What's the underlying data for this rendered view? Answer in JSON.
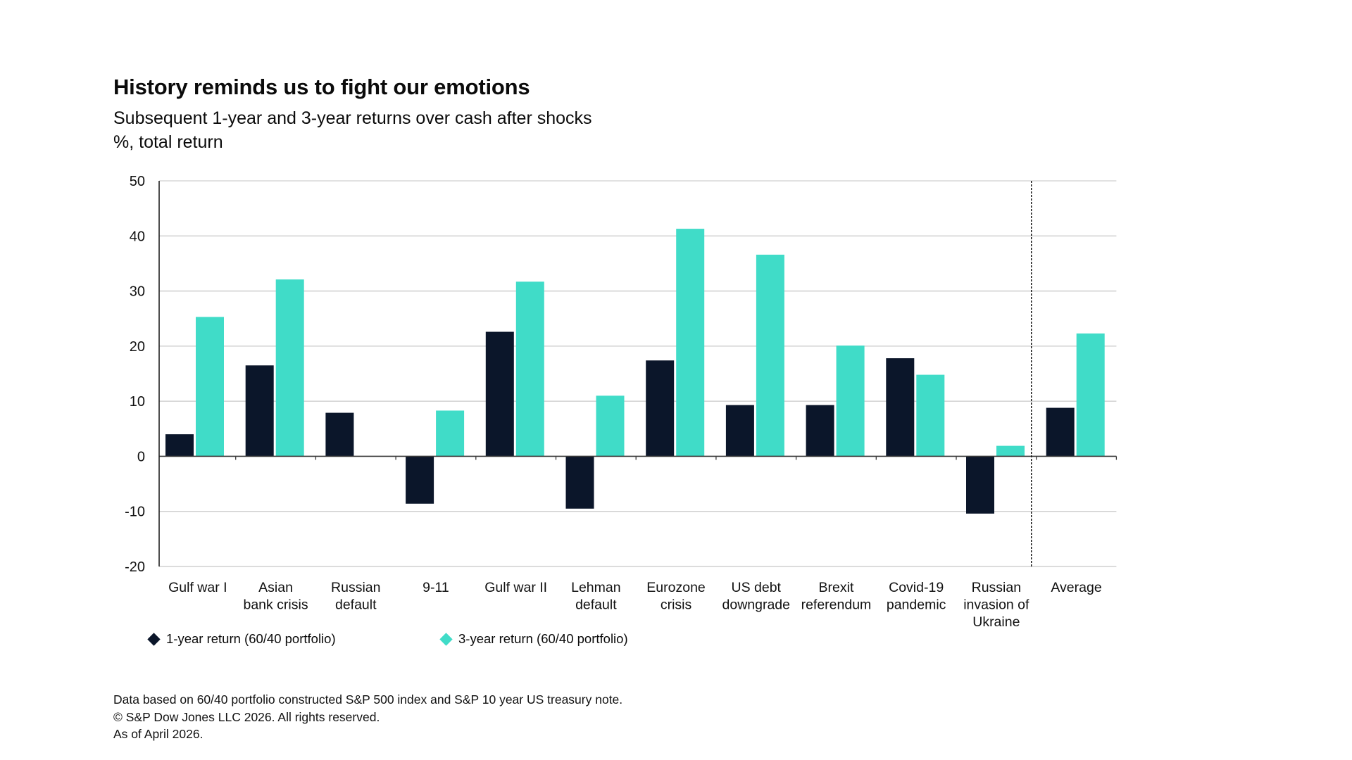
{
  "header": {
    "title": "History reminds us to fight our emotions",
    "subtitle": "Subsequent 1-year and 3-year returns over cash after shocks",
    "units": "%, total return"
  },
  "legend": [
    {
      "label": "1-year return (60/40 portfolio)",
      "color": "#0b162a",
      "marker": "diamond-icon"
    },
    {
      "label": "3-year return (60/40 portfolio)",
      "color": "#40dcc8",
      "marker": "diamond-icon"
    }
  ],
  "footer": {
    "lines": [
      "Data based on 60/40 portfolio constructed S&P 500 index and S&P 10 year US treasury note.",
      "© S&P Dow Jones LLC 2026. All rights reserved.",
      "As of April 2026."
    ]
  },
  "chart_data": {
    "type": "bar",
    "title": "History reminds us to fight our emotions",
    "subtitle": "Subsequent 1-year and 3-year returns over cash after shocks",
    "xlabel": "",
    "ylabel": "%, total return",
    "ylim": [
      -20,
      50
    ],
    "yticks": [
      50,
      40,
      30,
      20,
      10,
      0,
      -10,
      -20
    ],
    "grid": true,
    "legend_position": "bottom-left",
    "categories": [
      [
        "Gulf war I"
      ],
      [
        "Asian",
        "bank crisis"
      ],
      [
        "Russian",
        "default"
      ],
      [
        "9-11"
      ],
      [
        "Gulf war II"
      ],
      [
        "Lehman",
        "default"
      ],
      [
        "Eurozone",
        "crisis"
      ],
      [
        "US debt",
        "downgrade"
      ],
      [
        "Brexit",
        "referendum"
      ],
      [
        "Covid-19",
        "pandemic"
      ],
      [
        "Russian",
        "invasion of",
        "Ukraine"
      ],
      [
        "Average"
      ]
    ],
    "separator_before_category": "Average",
    "series": [
      {
        "name": "1-year return (60/40 portfolio)",
        "color": "#0b162a",
        "values": [
          4.0,
          16.5,
          7.9,
          -8.6,
          22.6,
          -9.5,
          17.4,
          9.3,
          9.3,
          17.8,
          -10.4,
          8.8
        ]
      },
      {
        "name": "3-year return (60/40 portfolio)",
        "color": "#40dcc8",
        "values": [
          25.3,
          32.1,
          0.0,
          8.3,
          31.7,
          11.0,
          41.3,
          36.6,
          20.1,
          14.8,
          1.9,
          22.3
        ]
      }
    ]
  }
}
